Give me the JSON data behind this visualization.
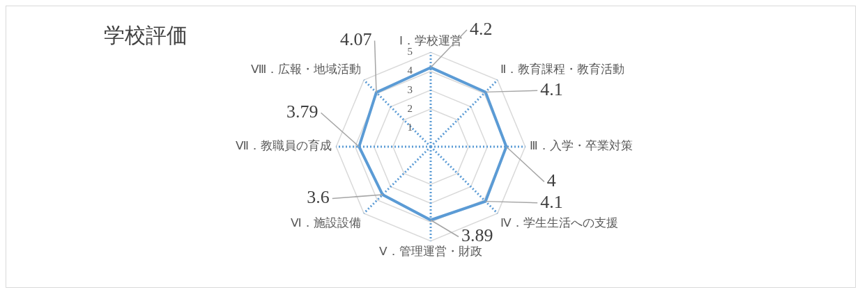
{
  "chart_data": {
    "type": "radar",
    "title": "学校評価",
    "categories": [
      "Ⅰ．学校運営",
      "Ⅱ．教育課程・教育活動",
      "Ⅲ．入学・卒業対策",
      "Ⅳ．学生生活への支援",
      "Ⅴ．管理運営・財政",
      "Ⅵ．施設設備",
      "Ⅶ．教職員の育成",
      "Ⅷ．広報・地域活動"
    ],
    "series": [
      {
        "color": "#5b9bd5",
        "values": [
          4.2,
          4.1,
          4,
          4.1,
          3.89,
          3.6,
          3.79,
          4.07
        ]
      }
    ],
    "ylim": [
      0,
      5
    ],
    "yticks": [
      1,
      2,
      3,
      4,
      5
    ],
    "grid": true,
    "legend": false,
    "data_labels": true,
    "marker": "none",
    "line_style": "solid"
  }
}
